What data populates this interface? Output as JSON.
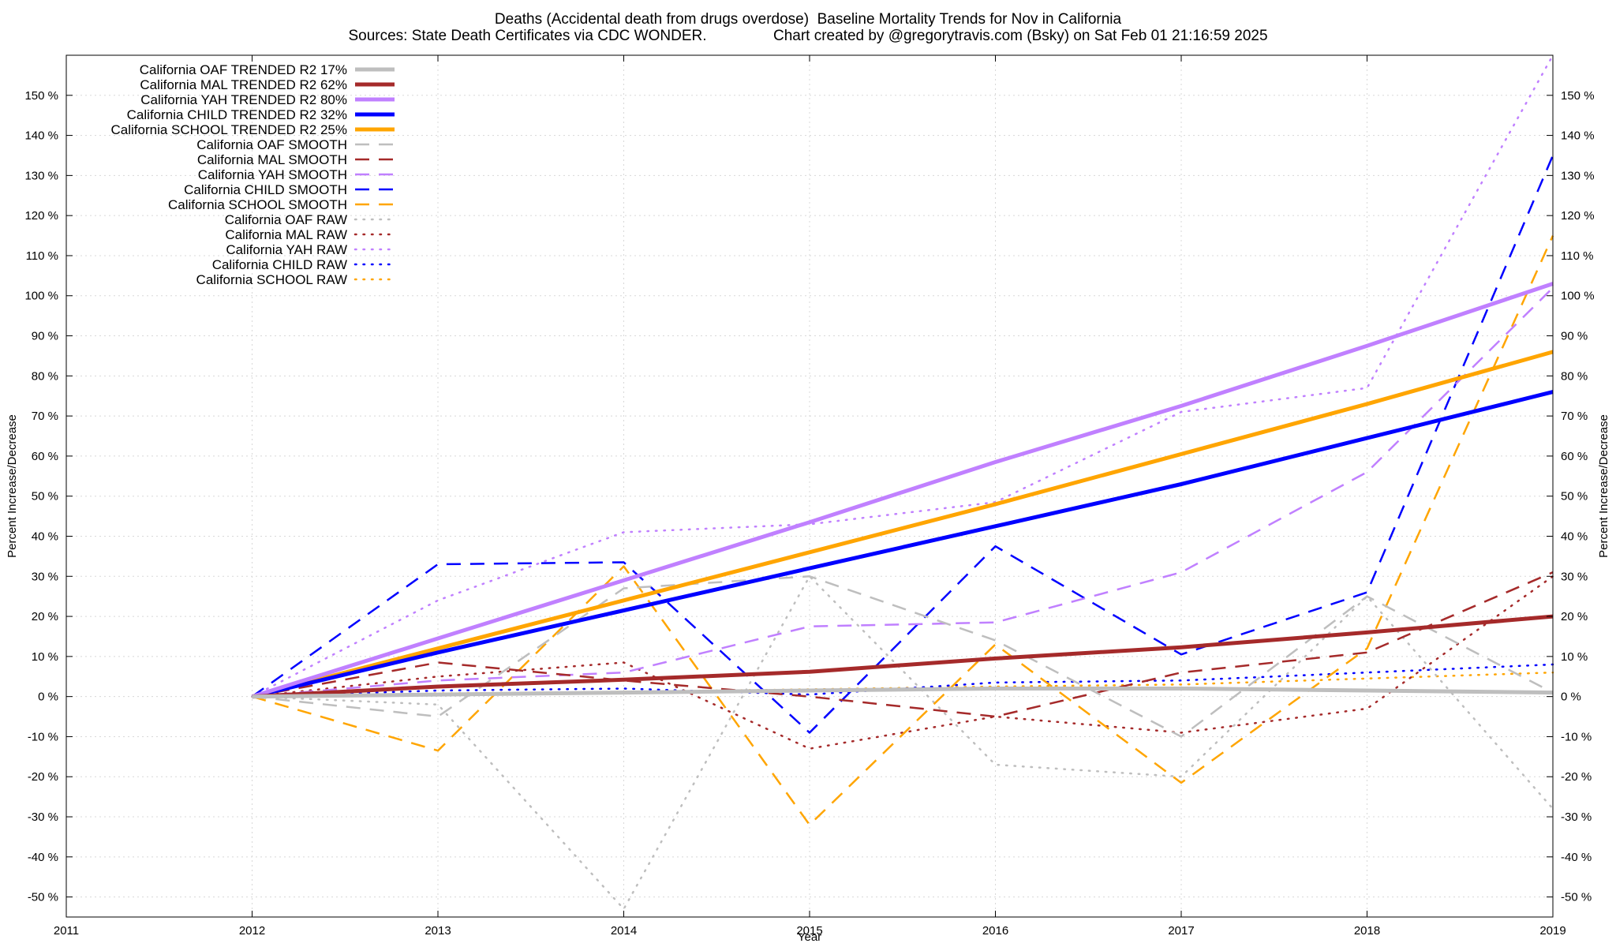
{
  "titles": {
    "line1": "Deaths (Accidental death from drugs overdose)  Baseline Mortality Trends for Nov in California",
    "line2_left": "Sources: State Death Certificates via CDC WONDER.",
    "line2_right": "Chart created by @gregorytravis.com (Bsky) on Sat Feb 01 21:16:59 2025"
  },
  "chart_data": {
    "type": "line",
    "xlabel": "Year",
    "ylabel": "Percent Increase/Decrease",
    "ylabel_right": "Percent Increase/Decrease",
    "xlim": [
      2011,
      2019
    ],
    "ylim": [
      -55,
      160
    ],
    "x_ticks": [
      2011,
      2012,
      2013,
      2014,
      2015,
      2016,
      2017,
      2018,
      2019
    ],
    "y_ticks": [
      -50,
      -40,
      -30,
      -20,
      -10,
      0,
      10,
      20,
      30,
      40,
      50,
      60,
      70,
      80,
      90,
      100,
      110,
      120,
      130,
      140,
      150
    ],
    "y_tick_suffix": " %",
    "grid": true,
    "legend_position": "top-left",
    "x": [
      2012,
      2013,
      2014,
      2015,
      2016,
      2017,
      2018,
      2019
    ],
    "series": [
      {
        "name": "California OAF TRENDED R2  17%",
        "style": "solid",
        "color": "#bebebe",
        "values": [
          0,
          0.5,
          1,
          1.5,
          2,
          2,
          1.5,
          1
        ]
      },
      {
        "name": "California MAL TRENDED R2  62%",
        "style": "solid",
        "color": "#a52a2a",
        "values": [
          0,
          2.5,
          4.2,
          6.2,
          9.5,
          12.3,
          16,
          20
        ]
      },
      {
        "name": "California YAH TRENDED R2  80%",
        "style": "solid",
        "color": "#c080ff",
        "values": [
          0,
          14.5,
          29,
          43.5,
          58.5,
          72.5,
          87.5,
          103
        ]
      },
      {
        "name": "California CHILD TRENDED R2  32%",
        "style": "solid",
        "color": "#0000ff",
        "values": [
          0,
          11,
          21.5,
          32,
          42.5,
          53,
          64.5,
          76
        ]
      },
      {
        "name": "California SCHOOL TRENDED R2  25%",
        "style": "solid",
        "color": "#ffa500",
        "values": [
          0,
          12,
          24,
          36,
          48,
          60.5,
          73,
          86
        ]
      },
      {
        "name": "California OAF SMOOTH",
        "style": "dashed",
        "color": "#bebebe",
        "values": [
          0,
          -5,
          27,
          30,
          14,
          -10,
          25,
          1
        ]
      },
      {
        "name": "California MAL SMOOTH",
        "style": "dashed",
        "color": "#a52a2a",
        "values": [
          0,
          8.5,
          4,
          0,
          -5,
          6,
          11,
          31
        ]
      },
      {
        "name": "California YAH SMOOTH",
        "style": "dashed",
        "color": "#c080ff",
        "values": [
          0,
          4,
          6,
          17.5,
          18.5,
          31,
          56,
          102
        ]
      },
      {
        "name": "California CHILD SMOOTH",
        "style": "dashed",
        "color": "#0000ff",
        "values": [
          0,
          33,
          33.5,
          -9,
          37.5,
          10.5,
          26,
          135
        ]
      },
      {
        "name": "California SCHOOL SMOOTH",
        "style": "dashed",
        "color": "#ffa500",
        "values": [
          0,
          -13.5,
          32.5,
          -32,
          13,
          -21.5,
          12,
          115
        ]
      },
      {
        "name": "California OAF RAW",
        "style": "dotted",
        "color": "#bebebe",
        "values": [
          0,
          -2,
          -53,
          30,
          -17,
          -20,
          25,
          -28
        ]
      },
      {
        "name": "California MAL RAW",
        "style": "dotted",
        "color": "#a52a2a",
        "values": [
          0,
          5,
          8.5,
          -13,
          -5,
          -9,
          -3,
          30
        ]
      },
      {
        "name": "California YAH RAW",
        "style": "dotted",
        "color": "#c080ff",
        "values": [
          0,
          24,
          41,
          43,
          48.5,
          71,
          77,
          160
        ]
      },
      {
        "name": "California CHILD RAW",
        "style": "dotted",
        "color": "#0000ff",
        "values": [
          0,
          1.5,
          2,
          0.5,
          3.5,
          4,
          6,
          8
        ]
      },
      {
        "name": "California SCHOOL RAW",
        "style": "dotted",
        "color": "#ffa500",
        "values": [
          0,
          0.8,
          1.2,
          1.8,
          2.5,
          3,
          4.5,
          6
        ]
      }
    ]
  }
}
